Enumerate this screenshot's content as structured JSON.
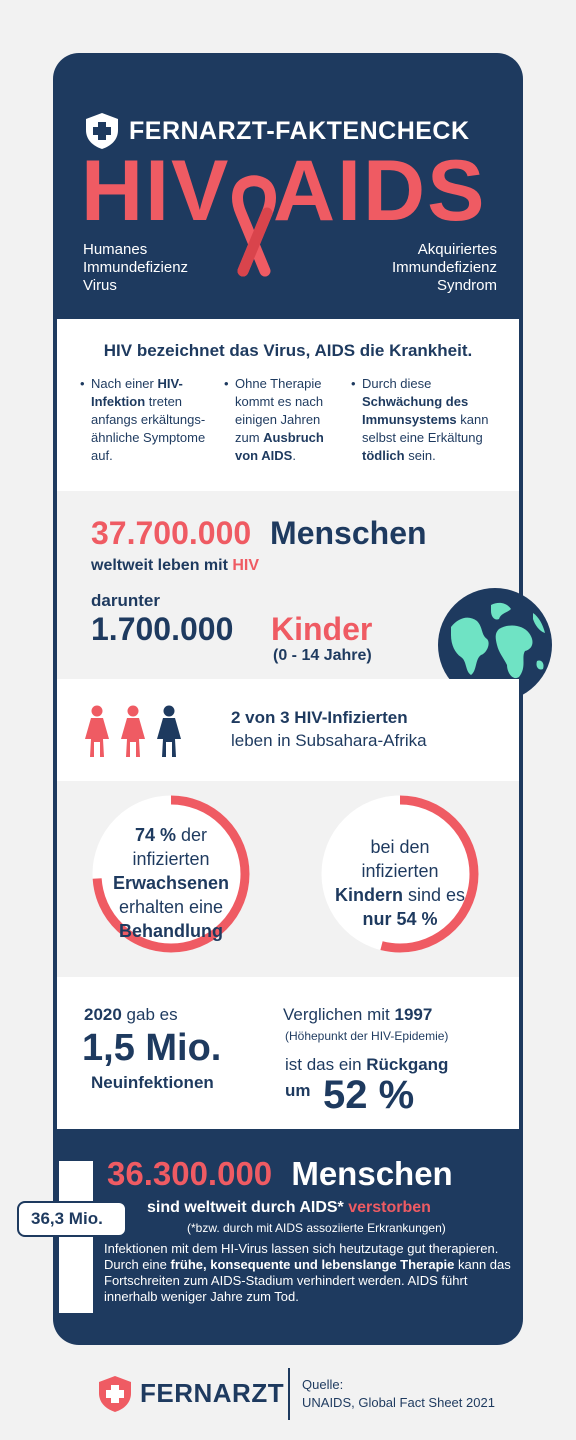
{
  "header": {
    "title": "FERNARZT-FAKTENCHECK",
    "hiv": "HIV",
    "aids": "AIDS",
    "left_acronym": [
      "Humanes",
      "Immundefizienz",
      "Virus"
    ],
    "right_acronym": [
      "Akquiriertes",
      "Immundefizienz",
      "Syndrom"
    ]
  },
  "intro": {
    "headline": "HIV bezeichnet das Virus, AIDS die Krankheit.",
    "col1": {
      "a": "Nach einer ",
      "b": "HIV-Infektion",
      "c": " treten anfangs erkältungs-ähnliche Symptome auf."
    },
    "col2": {
      "a": "Ohne Therapie kommt es nach einigen Jahren zum ",
      "b": "Ausbruch von AIDS",
      "c": "."
    },
    "col3": {
      "a": "Durch diese ",
      "b": "Schwächung des Immunsystems",
      "c": " kann selbst eine Erkältung ",
      "d": "tödlich",
      "e": " sein."
    }
  },
  "people": {
    "number": "37.700.000",
    "word": "Menschen",
    "sub_a": "weltweit leben mit ",
    "sub_b": "HIV",
    "darunter": "darunter",
    "kids_number": "1.700.000",
    "kids_word": "Kinder",
    "kids_age": "(0 - 14 Jahre)"
  },
  "africa": {
    "line1": "2 von 3 HIV-Infizierten",
    "line2": "leben in Subsahara-Afrika"
  },
  "treatment": {
    "adults_value": 74,
    "kids_value": 54,
    "adults": {
      "l1a": "74 %",
      "l1b": " der",
      "l2": "infizierten",
      "l3": "Erwachsenen",
      "l4": "erhalten eine",
      "l5": "Behandlung"
    },
    "kids": {
      "l1": "bei den",
      "l2": "infizierten",
      "l3a": "Kindern",
      "l3b": " sind es",
      "l4": "nur 54 %"
    }
  },
  "new_infections": {
    "year": "2020",
    "gab": " gab es",
    "number": "1,5 Mio.",
    "label": "Neuinfektionen",
    "compare_a": "Verglichen mit ",
    "compare_b": "1997",
    "peak": "(Höhepunkt der HIV-Epidemie)",
    "decline_a": "ist das ein ",
    "decline_b": "Rückgang",
    "um": "um",
    "percent": "52 %"
  },
  "deaths": {
    "badge": "36,3 Mio.",
    "number": "36.300.000",
    "word": "Menschen",
    "sub_a": "sind weltweit durch AIDS* ",
    "sub_b": "verstorben",
    "note": "(*bzw. durch mit AIDS assoziierte Erkrankungen)",
    "p1": "Infektionen mit dem HI-Virus lassen sich heutzutage gut therapieren. Durch  eine ",
    "p2": "frühe, konsequente und lebenslange Therapie",
    "p3": " kann das Fortschreiten zum AIDS-Stadium verhindert werden. AIDS führt innerhalb weniger Jahre zum Tod."
  },
  "footer": {
    "brand": "FERNARZT",
    "source_label": "Quelle:",
    "source": "UNAIDS, Global Fact Sheet 2021"
  },
  "colors": {
    "navy": "#1e3a5f",
    "red": "#ef5b63",
    "green": "#6fe3c4",
    "light": "#f2f2f2"
  }
}
